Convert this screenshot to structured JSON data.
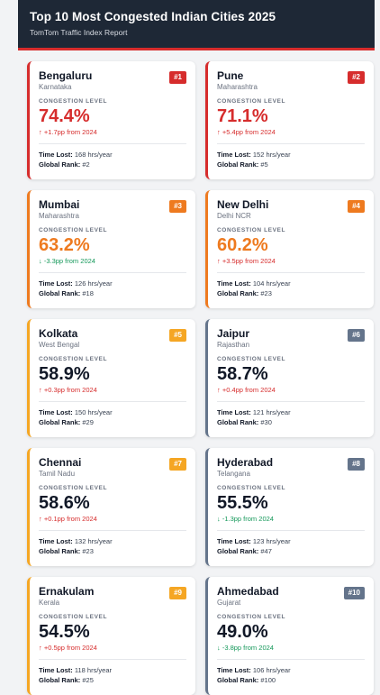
{
  "header": {
    "title": "Top 10 Most Congested Indian Cities 2025",
    "subtitle": "TomTom Traffic Index Report"
  },
  "labels": {
    "congestion": "CONGESTION LEVEL",
    "time_lost": "Time Lost:",
    "global_rank": "Global Rank:"
  },
  "colors": {
    "red": "#d62c2c",
    "orange": "#ee7a1f",
    "amber": "#f5a623",
    "slate": "#64748b",
    "pct_red": "#d62c2c",
    "pct_orange": "#ee7a1f",
    "pct_dark": "#111827"
  },
  "cities": [
    {
      "rank": "#1",
      "city": "Bengaluru",
      "state": "Karnataka",
      "level": "74.4%",
      "change": "↑ +1.7pp from 2024",
      "dir": "up",
      "time": "168 hrs/year",
      "global": "#2",
      "tone": "red"
    },
    {
      "rank": "#2",
      "city": "Pune",
      "state": "Maharashtra",
      "level": "71.1%",
      "change": "↑ +5.4pp from 2024",
      "dir": "up",
      "time": "152 hrs/year",
      "global": "#5",
      "tone": "red"
    },
    {
      "rank": "#3",
      "city": "Mumbai",
      "state": "Maharashtra",
      "level": "63.2%",
      "change": "↓ -3.3pp from 2024",
      "dir": "down",
      "time": "126 hrs/year",
      "global": "#18",
      "tone": "orange"
    },
    {
      "rank": "#4",
      "city": "New Delhi",
      "state": "Delhi NCR",
      "level": "60.2%",
      "change": "↑ +3.5pp from 2024",
      "dir": "up",
      "time": "104 hrs/year",
      "global": "#23",
      "tone": "orange"
    },
    {
      "rank": "#5",
      "city": "Kolkata",
      "state": "West Bengal",
      "level": "58.9%",
      "change": "↑ +0.3pp from 2024",
      "dir": "up",
      "time": "150 hrs/year",
      "global": "#29",
      "tone": "amber"
    },
    {
      "rank": "#6",
      "city": "Jaipur",
      "state": "Rajasthan",
      "level": "58.7%",
      "change": "↑ +0.4pp from 2024",
      "dir": "up",
      "time": "121 hrs/year",
      "global": "#30",
      "tone": "slate"
    },
    {
      "rank": "#7",
      "city": "Chennai",
      "state": "Tamil Nadu",
      "level": "58.6%",
      "change": "↑ +0.1pp from 2024",
      "dir": "up",
      "time": "132 hrs/year",
      "global": "#23",
      "tone": "amber"
    },
    {
      "rank": "#8",
      "city": "Hyderabad",
      "state": "Telangana",
      "level": "55.5%",
      "change": "↓ -1.3pp from 2024",
      "dir": "down",
      "time": "123 hrs/year",
      "global": "#47",
      "tone": "slate"
    },
    {
      "rank": "#9",
      "city": "Ernakulam",
      "state": "Kerala",
      "level": "54.5%",
      "change": "↑ +0.5pp from 2024",
      "dir": "up",
      "time": "118 hrs/year",
      "global": "#25",
      "tone": "amber"
    },
    {
      "rank": "#10",
      "city": "Ahmedabad",
      "state": "Gujarat",
      "level": "49.0%",
      "change": "↓ -3.8pp from 2024",
      "dir": "down",
      "time": "106 hrs/year",
      "global": "#100",
      "tone": "slate"
    }
  ]
}
